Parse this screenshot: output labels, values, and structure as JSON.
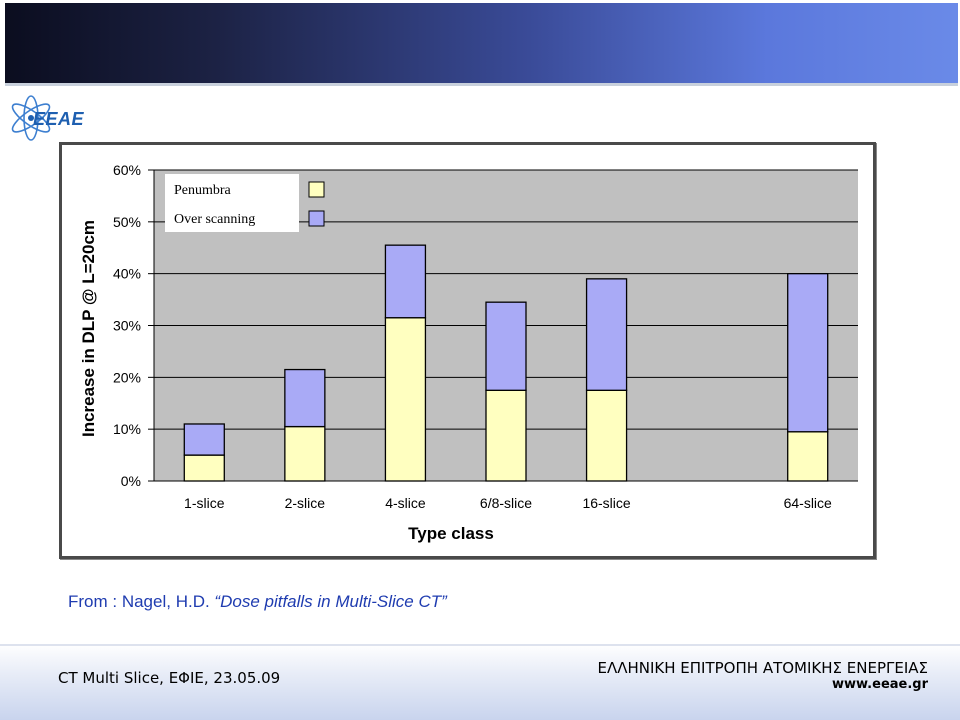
{
  "header": {
    "logo_text": "EEAE"
  },
  "chart_data": {
    "type": "bar",
    "stacked": true,
    "categories": [
      "1-slice",
      "2-slice",
      "4-slice",
      "6/8-slice",
      "16-slice",
      "64-slice"
    ],
    "series": [
      {
        "name": "Penumbra",
        "color": "#ffffc0",
        "values": [
          5,
          10.5,
          31.5,
          17.5,
          17.5,
          9.5
        ]
      },
      {
        "name": "Over scanning",
        "color": "#a9aaf6",
        "values": [
          6,
          11,
          14,
          17,
          21.5,
          30.5
        ]
      }
    ],
    "xlabel": "Type class",
    "ylabel": "Increase in DLP @ L=20cm",
    "ylim": [
      0,
      60
    ],
    "yticks": [
      "0%",
      "10%",
      "20%",
      "30%",
      "40%",
      "50%",
      "60%"
    ],
    "grid": true,
    "legend": "top-left",
    "plot_background": "#c0c0c0"
  },
  "source": {
    "prefix": "From : Nagel, H.D. ",
    "title": "“Dose pitfalls in Multi-Slice CT”"
  },
  "footer": {
    "left": "CT Multi Slice, ΕΦΙΕ, 23.05.09",
    "org": "ΕΛΛΗΝΙΚΗ ΕΠΙΤΡΟΠΗ ΑΤΟΜΙΚΗΣ ΕΝΕΡΓΕΙΑΣ",
    "url": "www.eeae.gr"
  }
}
